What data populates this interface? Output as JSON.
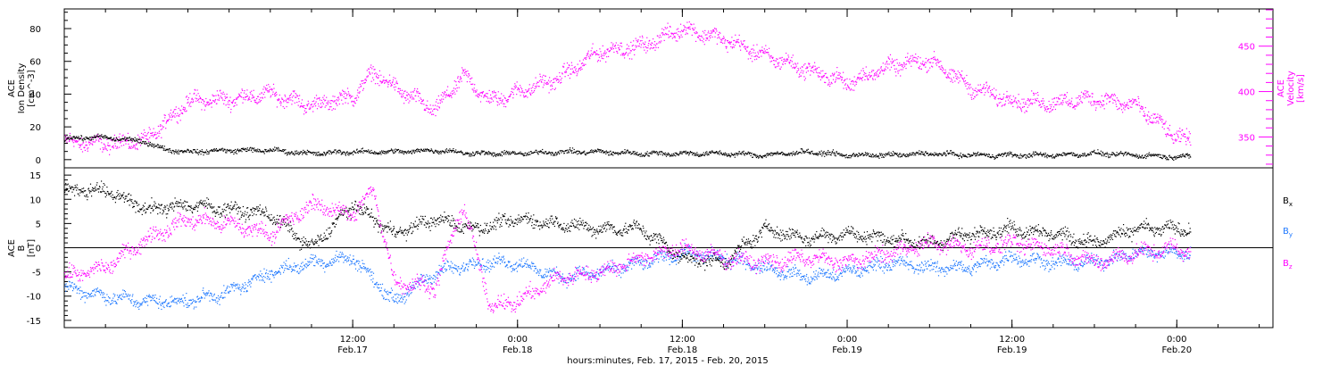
{
  "chart_data": [
    {
      "type": "scatter",
      "panel": "top",
      "title": "",
      "time_range": [
        "2015-02-16T15:00",
        "2015-02-20T07:00"
      ],
      "ylabel_left": [
        "ACE",
        "Ion Density",
        "[cm^-3]"
      ],
      "ylabel_right": [
        "ACE",
        "Velocity",
        "[km/s]"
      ],
      "ylim_left": [
        -5,
        92
      ],
      "ylim_right": [
        316,
        491
      ],
      "yticks_left": [
        "0",
        "20",
        "40",
        "60",
        "80"
      ],
      "yticks_right": [
        "350",
        "400",
        "450"
      ],
      "series": [
        {
          "name": "Ion Density",
          "axis": "left",
          "color": "#000000",
          "points": [
            [
              "2015-02-16T15:00",
              13
            ],
            [
              "2015-02-16T17:00",
              14
            ],
            [
              "2015-02-16T19:00",
              13
            ],
            [
              "2015-02-16T21:00",
              11
            ],
            [
              "2015-02-16T22:00",
              7
            ],
            [
              "2015-02-17T00:00",
              5
            ],
            [
              "2015-02-17T03:00",
              6
            ],
            [
              "2015-02-17T06:00",
              6
            ],
            [
              "2015-02-17T09:00",
              4
            ],
            [
              "2015-02-17T12:00",
              5
            ],
            [
              "2015-02-17T15:00",
              5
            ],
            [
              "2015-02-17T18:00",
              6
            ],
            [
              "2015-02-17T21:00",
              4
            ],
            [
              "2015-02-18T00:00",
              4
            ],
            [
              "2015-02-18T03:00",
              5
            ],
            [
              "2015-02-18T06:00",
              5
            ],
            [
              "2015-02-18T09:00",
              4
            ],
            [
              "2015-02-18T12:00",
              4
            ],
            [
              "2015-02-18T15:00",
              4
            ],
            [
              "2015-02-18T18:00",
              3
            ],
            [
              "2015-02-18T21:00",
              5
            ],
            [
              "2015-02-19T00:00",
              3
            ],
            [
              "2015-02-19T03:00",
              3
            ],
            [
              "2015-02-19T06:00",
              4
            ],
            [
              "2015-02-19T09:00",
              3
            ],
            [
              "2015-02-19T12:00",
              3
            ],
            [
              "2015-02-19T15:00",
              3
            ],
            [
              "2015-02-19T18:00",
              4
            ],
            [
              "2015-02-19T21:00",
              3
            ],
            [
              "2015-02-20T00:00",
              2
            ],
            [
              "2015-02-20T01:00",
              2
            ]
          ]
        },
        {
          "name": "Velocity",
          "axis": "right",
          "color": "#ff00ff",
          "points": [
            [
              "2015-02-16T15:00",
              345
            ],
            [
              "2015-02-16T18:00",
              343
            ],
            [
              "2015-02-16T21:00",
              347
            ],
            [
              "2015-02-17T00:00",
              390
            ],
            [
              "2015-02-17T03:00",
              392
            ],
            [
              "2015-02-17T06:00",
              398
            ],
            [
              "2015-02-17T09:00",
              385
            ],
            [
              "2015-02-17T12:00",
              395
            ],
            [
              "2015-02-17T13:30",
              422
            ],
            [
              "2015-02-17T15:00",
              405
            ],
            [
              "2015-02-17T18:00",
              380
            ],
            [
              "2015-02-17T20:00",
              418
            ],
            [
              "2015-02-17T22:00",
              390
            ],
            [
              "2015-02-18T00:00",
              400
            ],
            [
              "2015-02-18T03:00",
              415
            ],
            [
              "2015-02-18T06:00",
              445
            ],
            [
              "2015-02-18T09:00",
              450
            ],
            [
              "2015-02-18T12:00",
              470
            ],
            [
              "2015-02-18T15:00",
              458
            ],
            [
              "2015-02-18T18:00",
              440
            ],
            [
              "2015-02-18T21:00",
              425
            ],
            [
              "2015-02-19T00:00",
              410
            ],
            [
              "2015-02-19T03:00",
              428
            ],
            [
              "2015-02-19T06:00",
              435
            ],
            [
              "2015-02-19T09:00",
              405
            ],
            [
              "2015-02-19T12:00",
              390
            ],
            [
              "2015-02-19T15:00",
              388
            ],
            [
              "2015-02-19T18:00",
              393
            ],
            [
              "2015-02-19T21:00",
              385
            ],
            [
              "2015-02-20T00:00",
              350
            ],
            [
              "2015-02-20T01:00",
              346
            ]
          ]
        }
      ],
      "xticks": [
        {
          "time": "2015-02-17T12:00",
          "label": "12:00",
          "sublabel": "Feb.17"
        },
        {
          "time": "2015-02-18T00:00",
          "label": "0:00",
          "sublabel": "Feb.18"
        },
        {
          "time": "2015-02-18T12:00",
          "label": "12:00",
          "sublabel": "Feb.18"
        },
        {
          "time": "2015-02-19T00:00",
          "label": "0:00",
          "sublabel": "Feb.19"
        },
        {
          "time": "2015-02-19T12:00",
          "label": "12:00",
          "sublabel": "Feb.19"
        },
        {
          "time": "2015-02-20T00:00",
          "label": "0:00",
          "sublabel": "Feb.20"
        }
      ]
    },
    {
      "type": "scatter",
      "panel": "bottom",
      "title": "",
      "time_range": [
        "2015-02-16T15:00",
        "2015-02-20T07:00"
      ],
      "ylabel_left": [
        "ACE",
        "B",
        "[nT]"
      ],
      "ylim": [
        -16.5,
        16.5
      ],
      "yticks": [
        "-15",
        "-10",
        "-5",
        "0",
        "5",
        "10",
        "15"
      ],
      "zero_line": true,
      "series": [
        {
          "name": "Bx",
          "color": "#000000",
          "points": [
            [
              "2015-02-16T15:00",
              12
            ],
            [
              "2015-02-16T18:00",
              12
            ],
            [
              "2015-02-16T21:00",
              8
            ],
            [
              "2015-02-17T00:00",
              9
            ],
            [
              "2015-02-17T03:00",
              8
            ],
            [
              "2015-02-17T06:00",
              7
            ],
            [
              "2015-02-17T09:00",
              0
            ],
            [
              "2015-02-17T12:00",
              9
            ],
            [
              "2015-02-17T15:00",
              3
            ],
            [
              "2015-02-17T18:00",
              6
            ],
            [
              "2015-02-17T21:00",
              4
            ],
            [
              "2015-02-18T00:00",
              6
            ],
            [
              "2015-02-18T03:00",
              5
            ],
            [
              "2015-02-18T06:00",
              4
            ],
            [
              "2015-02-18T09:00",
              4
            ],
            [
              "2015-02-18T12:00",
              -2
            ],
            [
              "2015-02-18T15:00",
              -3
            ],
            [
              "2015-02-18T18:00",
              4
            ],
            [
              "2015-02-18T21:00",
              2
            ],
            [
              "2015-02-19T00:00",
              3
            ],
            [
              "2015-02-19T03:00",
              2
            ],
            [
              "2015-02-19T06:00",
              1
            ],
            [
              "2015-02-19T09:00",
              3
            ],
            [
              "2015-02-19T12:00",
              4
            ],
            [
              "2015-02-19T15:00",
              3
            ],
            [
              "2015-02-19T18:00",
              1
            ],
            [
              "2015-02-19T21:00",
              4
            ],
            [
              "2015-02-20T00:00",
              4
            ],
            [
              "2015-02-20T01:00",
              4
            ]
          ]
        },
        {
          "name": "By",
          "color": "#1e78ff",
          "points": [
            [
              "2015-02-16T15:00",
              -8
            ],
            [
              "2015-02-16T18:00",
              -10
            ],
            [
              "2015-02-16T21:00",
              -11
            ],
            [
              "2015-02-17T00:00",
              -11
            ],
            [
              "2015-02-17T03:00",
              -9
            ],
            [
              "2015-02-17T06:00",
              -5
            ],
            [
              "2015-02-17T09:00",
              -3
            ],
            [
              "2015-02-17T12:00",
              -2
            ],
            [
              "2015-02-17T15:00",
              -11
            ],
            [
              "2015-02-17T18:00",
              -5
            ],
            [
              "2015-02-17T21:00",
              -3
            ],
            [
              "2015-02-18T00:00",
              -3
            ],
            [
              "2015-02-18T03:00",
              -6
            ],
            [
              "2015-02-18T06:00",
              -5
            ],
            [
              "2015-02-18T09:00",
              -3
            ],
            [
              "2015-02-18T12:00",
              -1
            ],
            [
              "2015-02-18T15:00",
              -2
            ],
            [
              "2015-02-18T18:00",
              -4
            ],
            [
              "2015-02-18T21:00",
              -6
            ],
            [
              "2015-02-19T00:00",
              -5
            ],
            [
              "2015-02-19T03:00",
              -3
            ],
            [
              "2015-02-19T06:00",
              -4
            ],
            [
              "2015-02-19T09:00",
              -4
            ],
            [
              "2015-02-19T12:00",
              -2
            ],
            [
              "2015-02-19T15:00",
              -3
            ],
            [
              "2015-02-19T18:00",
              -3
            ],
            [
              "2015-02-19T21:00",
              -1
            ],
            [
              "2015-02-20T00:00",
              -1
            ],
            [
              "2015-02-20T01:00",
              -1
            ]
          ]
        },
        {
          "name": "Bz",
          "color": "#ff00ff",
          "points": [
            [
              "2015-02-16T15:00",
              -6
            ],
            [
              "2015-02-16T18:00",
              -4
            ],
            [
              "2015-02-16T21:00",
              2
            ],
            [
              "2015-02-17T00:00",
              6
            ],
            [
              "2015-02-17T03:00",
              5
            ],
            [
              "2015-02-17T06:00",
              3
            ],
            [
              "2015-02-17T09:00",
              9
            ],
            [
              "2015-02-17T12:00",
              7
            ],
            [
              "2015-02-17T13:30",
              12
            ],
            [
              "2015-02-17T15:00",
              -7
            ],
            [
              "2015-02-17T18:00",
              -8
            ],
            [
              "2015-02-17T20:00",
              9
            ],
            [
              "2015-02-17T22:00",
              -12
            ],
            [
              "2015-02-18T00:00",
              -11
            ],
            [
              "2015-02-18T03:00",
              -6
            ],
            [
              "2015-02-18T06:00",
              -5
            ],
            [
              "2015-02-18T09:00",
              -2
            ],
            [
              "2015-02-18T12:00",
              0
            ],
            [
              "2015-02-18T15:00",
              -2
            ],
            [
              "2015-02-18T18:00",
              -3
            ],
            [
              "2015-02-18T21:00",
              -2
            ],
            [
              "2015-02-19T00:00",
              -3
            ],
            [
              "2015-02-19T03:00",
              -1
            ],
            [
              "2015-02-19T06:00",
              1
            ],
            [
              "2015-02-19T09:00",
              0
            ],
            [
              "2015-02-19T12:00",
              1
            ],
            [
              "2015-02-19T15:00",
              0
            ],
            [
              "2015-02-19T18:00",
              -3
            ],
            [
              "2015-02-19T21:00",
              -1
            ],
            [
              "2015-02-20T00:00",
              0
            ],
            [
              "2015-02-20T01:00",
              -1
            ]
          ]
        }
      ],
      "legend": [
        {
          "label": "B",
          "sub": "x",
          "color": "#000000"
        },
        {
          "label": "B",
          "sub": "y",
          "color": "#1e78ff"
        },
        {
          "label": "B",
          "sub": "z",
          "color": "#ff00ff"
        }
      ],
      "legend_position": "right",
      "xlabel": "hours:minutes, Feb. 17, 2015 - Feb. 20, 2015",
      "xticks": [
        {
          "time": "2015-02-17T12:00",
          "label": "12:00",
          "sublabel": "Feb.17"
        },
        {
          "time": "2015-02-18T00:00",
          "label": "0:00",
          "sublabel": "Feb.18"
        },
        {
          "time": "2015-02-18T12:00",
          "label": "12:00",
          "sublabel": "Feb.18"
        },
        {
          "time": "2015-02-19T00:00",
          "label": "0:00",
          "sublabel": "Feb.19"
        },
        {
          "time": "2015-02-19T12:00",
          "label": "12:00",
          "sublabel": "Feb.19"
        },
        {
          "time": "2015-02-20T00:00",
          "label": "0:00",
          "sublabel": "Feb.20"
        }
      ]
    }
  ]
}
